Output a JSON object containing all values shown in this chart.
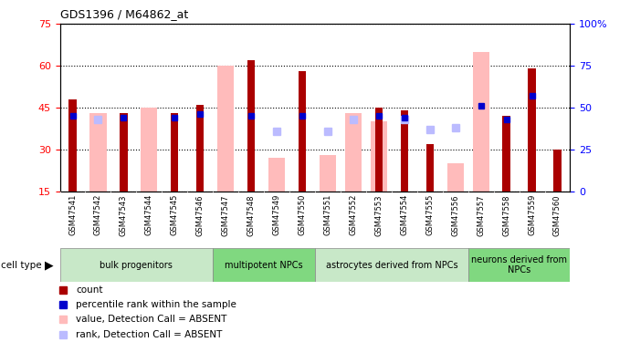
{
  "title": "GDS1396 / M64862_at",
  "samples": [
    "GSM47541",
    "GSM47542",
    "GSM47543",
    "GSM47544",
    "GSM47545",
    "GSM47546",
    "GSM47547",
    "GSM47548",
    "GSM47549",
    "GSM47550",
    "GSM47551",
    "GSM47552",
    "GSM47553",
    "GSM47554",
    "GSM47555",
    "GSM47556",
    "GSM47557",
    "GSM47558",
    "GSM47559",
    "GSM47560"
  ],
  "count": [
    48,
    null,
    43,
    null,
    43,
    46,
    null,
    62,
    null,
    58,
    null,
    null,
    45,
    44,
    32,
    null,
    null,
    42,
    59,
    30
  ],
  "rank": [
    45,
    null,
    44,
    null,
    44,
    46,
    null,
    45,
    null,
    45,
    null,
    null,
    45,
    44,
    null,
    null,
    51,
    43,
    57,
    null
  ],
  "value_absent": [
    null,
    43,
    null,
    45,
    null,
    null,
    60,
    null,
    27,
    null,
    28,
    43,
    40,
    null,
    null,
    25,
    65,
    null,
    null,
    null
  ],
  "rank_absent": [
    null,
    43,
    null,
    null,
    null,
    null,
    null,
    null,
    36,
    null,
    36,
    43,
    null,
    43,
    37,
    38,
    null,
    null,
    null,
    null
  ],
  "cell_types": [
    {
      "label": "bulk progenitors",
      "start": 0,
      "end": 6,
      "color": "#c8e8c8"
    },
    {
      "label": "multipotent NPCs",
      "start": 6,
      "end": 10,
      "color": "#80d880"
    },
    {
      "label": "astrocytes derived from NPCs",
      "start": 10,
      "end": 16,
      "color": "#c8e8c8"
    },
    {
      "label": "neurons derived from\nNPCs",
      "start": 16,
      "end": 20,
      "color": "#80d880"
    }
  ],
  "ylim_left": [
    15,
    75
  ],
  "ylim_right": [
    0,
    100
  ],
  "count_color": "#aa0000",
  "rank_color": "#0000cc",
  "value_absent_color": "#ffbbbb",
  "rank_absent_color": "#bbbbff",
  "plot_bg": "#ffffff",
  "xtick_bg": "#c8c8c8"
}
